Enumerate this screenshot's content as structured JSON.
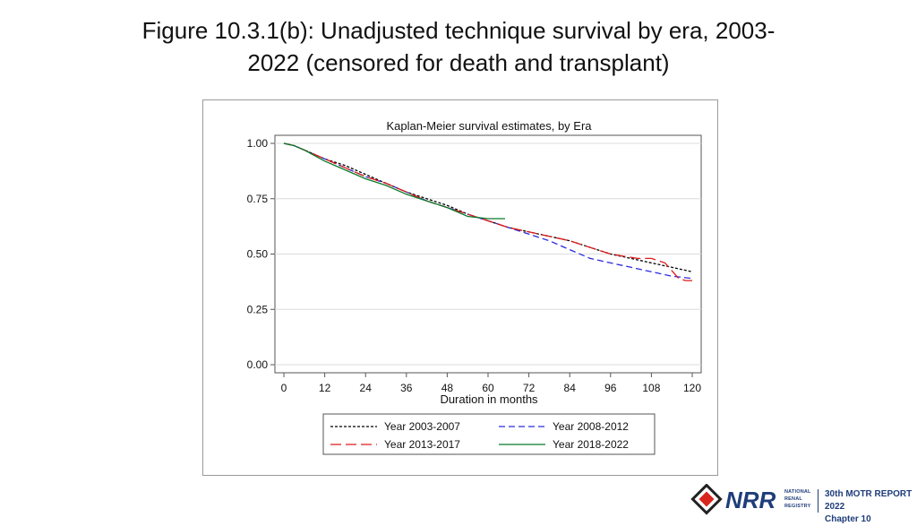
{
  "slide": {
    "title_line1": "Figure 10.3.1(b): Unadjusted technique survival by era, 2003-",
    "title_line2": "2022 (censored for death and transplant)"
  },
  "footer": {
    "registry_lines": [
      "NATIONAL",
      "RENAL",
      "REGISTRY"
    ],
    "logo_letters": "NRR",
    "report_line": "30th MOTR REPORT 2022",
    "chapter_line": "Chapter 10",
    "brand_color": "#1f3d7a"
  },
  "chart_data": {
    "type": "line",
    "title": "Kaplan-Meier survival estimates, by Era",
    "xlabel": "Duration in months",
    "ylabel": "",
    "xlim": [
      0,
      120
    ],
    "ylim": [
      0,
      1
    ],
    "xticks": [
      "0",
      "12",
      "24",
      "36",
      "48",
      "60",
      "72",
      "84",
      "96",
      "108",
      "120"
    ],
    "yticks": [
      "0.00",
      "0.25",
      "0.50",
      "0.75",
      "1.00"
    ],
    "grid": true,
    "legend_position": "bottom",
    "series": [
      {
        "name": "Year 2003-2007",
        "color": "#000000",
        "dash": "3,2",
        "x": [
          0,
          3,
          6,
          12,
          18,
          24,
          30,
          36,
          42,
          48,
          54,
          60,
          66,
          72,
          78,
          84,
          90,
          96,
          102,
          108,
          114,
          120
        ],
        "y": [
          1.0,
          0.99,
          0.97,
          0.93,
          0.9,
          0.86,
          0.82,
          0.78,
          0.75,
          0.72,
          0.68,
          0.65,
          0.62,
          0.6,
          0.58,
          0.56,
          0.53,
          0.5,
          0.48,
          0.46,
          0.44,
          0.42
        ]
      },
      {
        "name": "Year 2008-2012",
        "color": "#2a2ae0",
        "dash": "7,4",
        "x": [
          0,
          3,
          6,
          12,
          18,
          24,
          30,
          36,
          42,
          48,
          54,
          60,
          66,
          72,
          78,
          84,
          90,
          96,
          102,
          108,
          114,
          120
        ],
        "y": [
          1.0,
          0.99,
          0.97,
          0.93,
          0.89,
          0.85,
          0.82,
          0.78,
          0.74,
          0.71,
          0.68,
          0.65,
          0.62,
          0.59,
          0.56,
          0.52,
          0.48,
          0.46,
          0.44,
          0.42,
          0.4,
          0.39
        ]
      },
      {
        "name": "Year 2013-2017",
        "color": "#dd1a1a",
        "dash": "12,5",
        "x": [
          0,
          3,
          6,
          12,
          18,
          24,
          30,
          36,
          42,
          48,
          54,
          60,
          66,
          72,
          78,
          84,
          90,
          96,
          100,
          104,
          108,
          112,
          116,
          118,
          120
        ],
        "y": [
          1.0,
          0.99,
          0.97,
          0.93,
          0.89,
          0.85,
          0.82,
          0.78,
          0.74,
          0.71,
          0.68,
          0.65,
          0.62,
          0.6,
          0.58,
          0.56,
          0.53,
          0.5,
          0.49,
          0.48,
          0.48,
          0.46,
          0.39,
          0.38,
          0.38
        ]
      },
      {
        "name": "Year 2018-2022",
        "color": "#0a7a2a",
        "dash": "",
        "x": [
          0,
          3,
          6,
          12,
          18,
          24,
          30,
          36,
          42,
          48,
          54,
          60,
          65
        ],
        "y": [
          1.0,
          0.99,
          0.97,
          0.92,
          0.88,
          0.84,
          0.81,
          0.77,
          0.74,
          0.71,
          0.67,
          0.66,
          0.66
        ]
      }
    ]
  }
}
